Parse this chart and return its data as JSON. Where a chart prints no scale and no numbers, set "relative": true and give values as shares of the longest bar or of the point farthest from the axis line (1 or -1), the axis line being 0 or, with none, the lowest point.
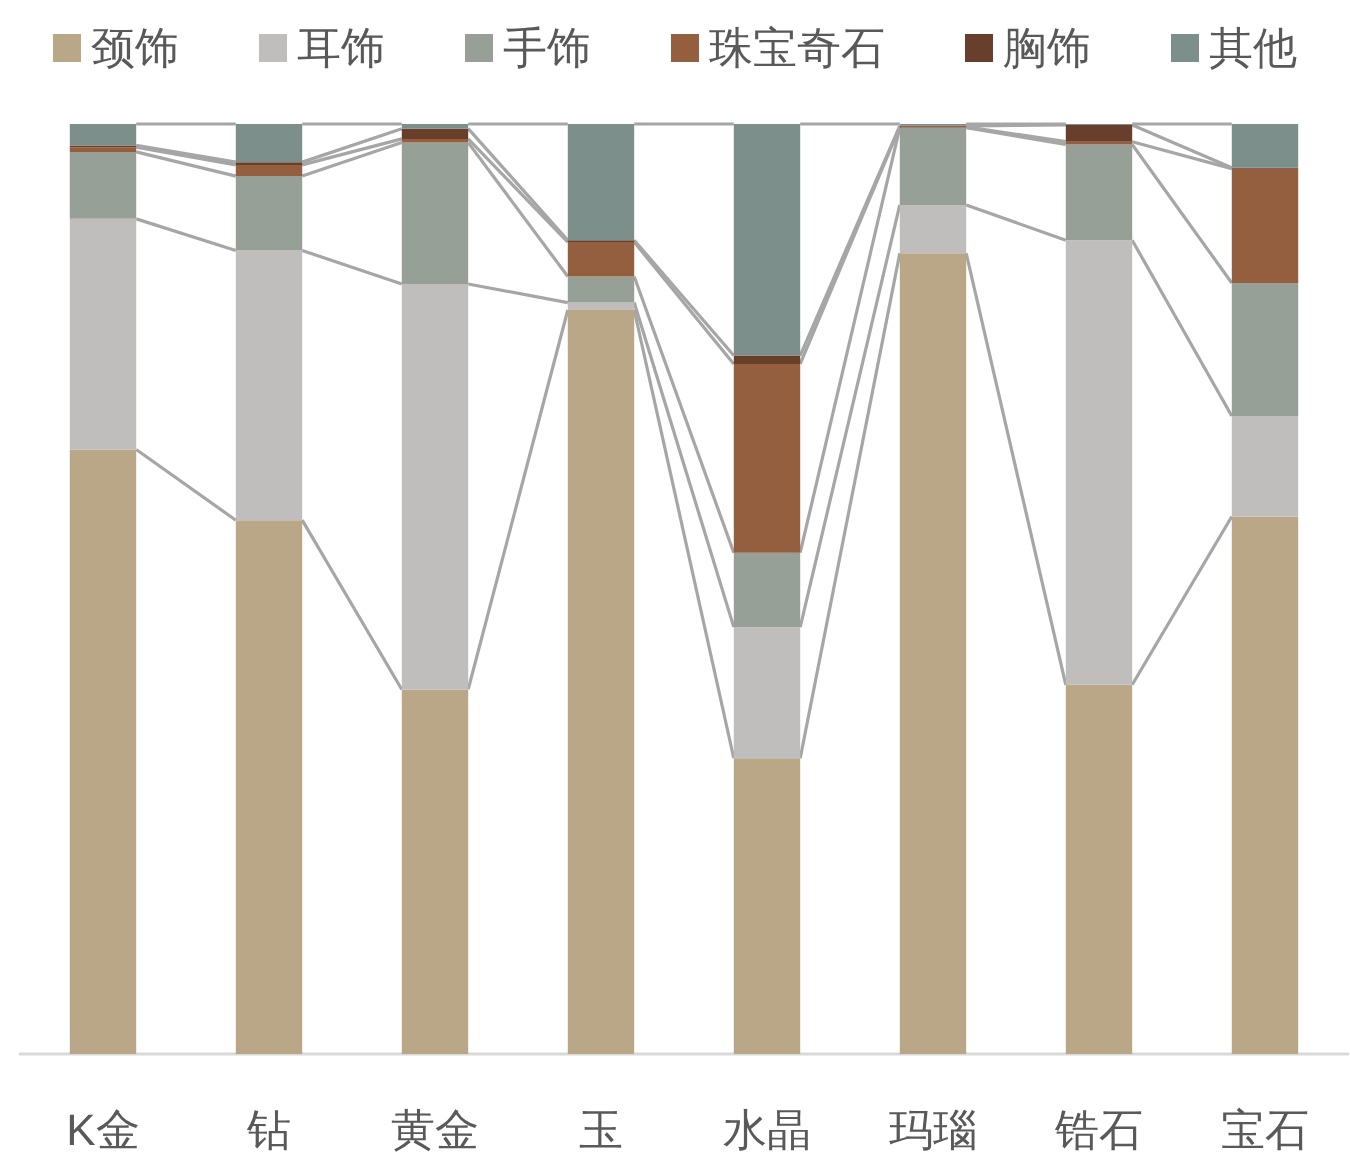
{
  "chart_data": {
    "type": "bar",
    "stacked": true,
    "relative": true,
    "legend": "top",
    "grid": false,
    "categories": [
      "K金",
      "钻",
      "黄金",
      "玉",
      "水晶",
      "玛瑙",
      "锆石",
      "宝石"
    ],
    "series": [
      {
        "name": "颈饰",
        "color": "#b9a787",
        "values": [
          0.65,
          0.574,
          0.392,
          0.8,
          0.318,
          0.861,
          0.397,
          0.578
        ]
      },
      {
        "name": "耳饰",
        "color": "#bfbebd",
        "values": [
          0.248,
          0.29,
          0.436,
          0.008,
          0.141,
          0.052,
          0.478,
          0.108
        ]
      },
      {
        "name": "手饰",
        "color": "#97a097",
        "values": [
          0.072,
          0.08,
          0.152,
          0.028,
          0.08,
          0.083,
          0.103,
          0.143
        ]
      },
      {
        "name": "珠宝奇石",
        "color": "#935f3e",
        "values": [
          0.005,
          0.012,
          0.004,
          0.037,
          0.203,
          0.001,
          0.003,
          0.123
        ]
      },
      {
        "name": "胸饰",
        "color": "#673f2a",
        "values": [
          0.002,
          0.003,
          0.011,
          0.002,
          0.009,
          0.001,
          0.018,
          0.001
        ]
      },
      {
        "name": "其他",
        "color": "#7c8f8b",
        "values": [
          0.023,
          0.041,
          0.005,
          0.125,
          0.249,
          0.002,
          0.001,
          0.047
        ]
      }
    ]
  }
}
